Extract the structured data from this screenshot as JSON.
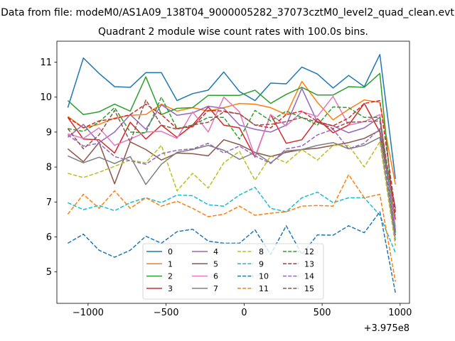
{
  "chart_data": {
    "type": "line",
    "suptitle": "Data from file: modeM0/AS1A09_138T04_9000005282_37073cztM0_level2_quad_clean.evt",
    "title": "Quadrant 2 module wise count rates with 100.0s bins.",
    "xlabel": "",
    "ylabel": "",
    "x_offset_label": "+3.975e8",
    "xlim": [
      -1200,
      1060
    ],
    "ylim": [
      4.1,
      11.6
    ],
    "xticks": [
      -1000,
      -500,
      0,
      500,
      1000
    ],
    "xtick_labels": [
      "−1000",
      "−500",
      "0",
      "500",
      "1000"
    ],
    "yticks": [
      5,
      6,
      7,
      8,
      9,
      10,
      11
    ],
    "ytick_labels": [
      "5",
      "6",
      "7",
      "8",
      "9",
      "10",
      "11"
    ],
    "legend_position": "lower-center",
    "x": [
      -1130,
      -1030,
      -930,
      -830,
      -730,
      -630,
      -530,
      -430,
      -330,
      -230,
      -130,
      -30,
      70,
      170,
      270,
      370,
      470,
      570,
      670,
      770,
      870,
      970
    ],
    "series": [
      {
        "name": "0",
        "color": "#1f77b4",
        "dash": "solid",
        "values": [
          9.7,
          11.12,
          10.68,
          10.3,
          10.28,
          10.7,
          10.7,
          9.9,
          10.1,
          10.2,
          10.72,
          10.16,
          9.9,
          10.4,
          10.38,
          10.86,
          10.66,
          10.26,
          10.62,
          10.3,
          11.22,
          7.66
        ]
      },
      {
        "name": "1",
        "color": "#ff7f0e",
        "dash": "solid",
        "values": [
          9.45,
          9.12,
          9.22,
          9.4,
          9.48,
          9.5,
          9.8,
          9.6,
          9.7,
          9.6,
          9.7,
          9.82,
          9.8,
          9.7,
          9.5,
          10.45,
          9.85,
          9.35,
          9.65,
          9.92,
          9.85,
          7.5
        ]
      },
      {
        "name": "2",
        "color": "#2ca02c",
        "dash": "solid",
        "values": [
          9.9,
          9.5,
          9.58,
          9.8,
          9.6,
          10.58,
          9.5,
          9.68,
          9.7,
          10.05,
          10.05,
          10.05,
          10.2,
          9.82,
          10.08,
          10.28,
          10.06,
          10.06,
          10.3,
          10.28,
          10.68,
          6.12
        ]
      },
      {
        "name": "3",
        "color": "#d62728",
        "dash": "solid",
        "values": [
          9.42,
          8.8,
          8.78,
          8.4,
          9.28,
          8.8,
          9.2,
          8.85,
          9.2,
          9.72,
          9.2,
          9.12,
          8.28,
          9.5,
          8.68,
          8.78,
          9.38,
          8.98,
          9.2,
          9.82,
          9.0,
          6.5
        ]
      },
      {
        "name": "4",
        "color": "#9467bd",
        "dash": "solid",
        "values": [
          8.85,
          9.22,
          8.7,
          9.0,
          9.5,
          9.08,
          9.78,
          9.48,
          9.55,
          9.74,
          9.68,
          9.2,
          9.08,
          9.0,
          9.2,
          10.25,
          9.28,
          9.18,
          8.98,
          9.12,
          9.42,
          6.2
        ]
      },
      {
        "name": "5",
        "color": "#8c564b",
        "dash": "solid",
        "values": [
          8.52,
          8.15,
          8.7,
          7.52,
          8.72,
          8.5,
          8.2,
          8.4,
          8.38,
          8.32,
          8.78,
          8.64,
          8.42,
          8.3,
          8.42,
          8.5,
          8.54,
          8.62,
          8.7,
          8.82,
          9.05,
          6.82
        ]
      },
      {
        "name": "6",
        "color": "#e377c2",
        "dash": "solid",
        "values": [
          8.95,
          8.82,
          9.12,
          8.62,
          8.8,
          9.0,
          9.02,
          8.82,
          9.58,
          9.0,
          10.0,
          9.58,
          8.3,
          9.5,
          9.18,
          9.58,
          9.45,
          10.02,
          9.2,
          9.3,
          9.5,
          6.3
        ]
      },
      {
        "name": "7",
        "color": "#7f7f7f",
        "dash": "solid",
        "values": [
          8.32,
          8.12,
          8.28,
          8.1,
          8.3,
          7.5,
          8.08,
          8.42,
          8.5,
          8.62,
          8.48,
          8.22,
          8.42,
          8.12,
          8.46,
          8.5,
          8.62,
          8.7,
          8.52,
          8.62,
          8.85,
          5.9
        ]
      },
      {
        "name": "8",
        "color": "#bcbd22",
        "dash": "dash",
        "values": [
          7.82,
          7.7,
          7.85,
          8.02,
          8.2,
          8.12,
          8.62,
          7.32,
          7.82,
          7.4,
          8.12,
          8.45,
          7.62,
          8.32,
          8.12,
          8.5,
          8.2,
          8.62,
          8.62,
          8.0,
          8.72,
          5.75
        ]
      },
      {
        "name": "9",
        "color": "#17becf",
        "dash": "dash",
        "values": [
          6.98,
          6.78,
          6.9,
          6.75,
          6.98,
          7.12,
          6.98,
          7.2,
          7.18,
          6.92,
          6.88,
          7.2,
          7.42,
          6.82,
          6.72,
          7.12,
          7.28,
          6.98,
          7.12,
          7.12,
          6.62,
          5.55
        ]
      },
      {
        "name": "10",
        "color": "#1f77b4",
        "dash": "dash",
        "values": [
          5.82,
          6.08,
          5.62,
          5.42,
          5.62,
          6.02,
          5.82,
          6.15,
          6.22,
          5.88,
          5.82,
          5.82,
          6.2,
          5.5,
          6.32,
          5.5,
          6.06,
          6.05,
          6.32,
          6.12,
          6.72,
          4.4
        ]
      },
      {
        "name": "11",
        "color": "#ff7f0e",
        "dash": "dash",
        "values": [
          6.65,
          7.22,
          6.82,
          7.32,
          6.82,
          7.12,
          6.88,
          7.02,
          6.82,
          6.58,
          6.65,
          6.88,
          6.62,
          6.68,
          6.72,
          6.88,
          6.9,
          6.88,
          7.78,
          7.12,
          7.22,
          4.72
        ]
      },
      {
        "name": "12",
        "color": "#2ca02c",
        "dash": "dash",
        "values": [
          9.1,
          9.02,
          9.28,
          9.7,
          9.0,
          8.98,
          10.0,
          9.1,
          9.2,
          9.42,
          9.42,
          8.8,
          9.62,
          9.32,
          9.6,
          9.42,
          9.2,
          9.72,
          9.7,
          9.42,
          9.42,
          6.05
        ]
      },
      {
        "name": "13",
        "color": "#d62728",
        "dash": "dash",
        "values": [
          9.42,
          9.12,
          9.32,
          9.38,
          9.5,
          9.8,
          9.5,
          9.1,
          9.15,
          9.62,
          9.6,
          9.52,
          9.2,
          9.12,
          9.5,
          9.6,
          9.3,
          9.18,
          9.4,
          9.82,
          9.9,
          6.72
        ]
      },
      {
        "name": "14",
        "color": "#9467bd",
        "dash": "dash",
        "values": [
          8.92,
          8.6,
          8.68,
          8.3,
          8.18,
          8.08,
          8.38,
          8.48,
          8.52,
          8.68,
          8.4,
          8.6,
          8.32,
          8.1,
          8.52,
          8.6,
          8.92,
          9.08,
          8.52,
          8.68,
          9.1,
          6.0
        ]
      },
      {
        "name": "15",
        "color": "#8c564b",
        "dash": "dash",
        "values": [
          9.1,
          8.52,
          8.92,
          9.62,
          8.72,
          9.92,
          9.2,
          9.08,
          9.2,
          9.28,
          9.58,
          9.52,
          9.2,
          9.22,
          9.3,
          9.42,
          9.28,
          9.1,
          9.28,
          9.3,
          9.32,
          6.62
        ]
      }
    ]
  }
}
